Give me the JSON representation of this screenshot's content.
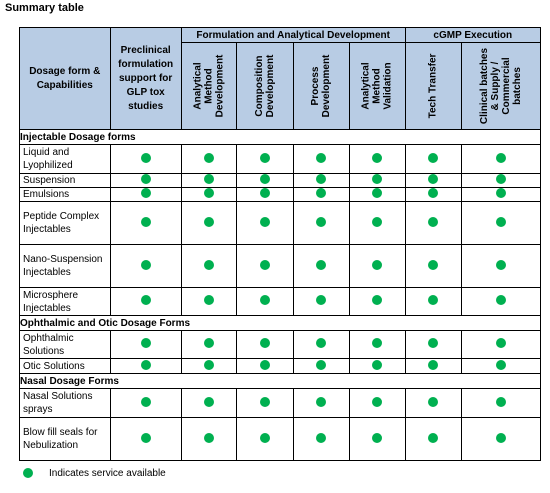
{
  "title": "Summary table",
  "dot_color": "#00b050",
  "header": {
    "dosage": "Dosage form & Capabilities",
    "preclinical": "Preclinical formulation support for GLP tox studies",
    "group_formulation": "Formulation and Analytical Development",
    "group_cgmp": "cGMP Execution",
    "cols": [
      "Analytical Method Development",
      "Composition Development",
      "Process Development",
      "Analytical Method Validation",
      "Tech Transfer",
      "Clinical batches & Supply / Commercial batches"
    ]
  },
  "sections": [
    {
      "title": "Injectable Dosage forms",
      "rows": [
        "Liquid and Lyophilized",
        "Suspension",
        "Emulsions",
        "Peptide Complex Injectables",
        "Nano-Suspension Injectables",
        "Microsphere Injectables"
      ]
    },
    {
      "title": "Ophthalmic and Otic Dosage Forms",
      "rows": [
        "Ophthalmic Solutions",
        "Otic Solutions"
      ]
    },
    {
      "title": "Nasal Dosage Forms",
      "rows": [
        "Nasal Solutions sprays",
        "Blow fill seals for Nebulization"
      ]
    }
  ],
  "legend": "Indicates service available"
}
